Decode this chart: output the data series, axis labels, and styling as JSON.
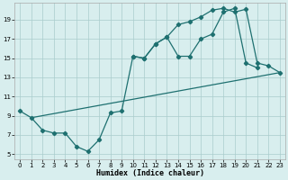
{
  "xlabel": "Humidex (Indice chaleur)",
  "background_color": "#d8eeee",
  "grid_color": "#aacccc",
  "line_color": "#1e7070",
  "xlim": [
    -0.5,
    23.5
  ],
  "ylim": [
    4.5,
    20.8
  ],
  "xticks": [
    0,
    1,
    2,
    3,
    4,
    5,
    6,
    7,
    8,
    9,
    10,
    11,
    12,
    13,
    14,
    15,
    16,
    17,
    18,
    19,
    20,
    21,
    22,
    23
  ],
  "yticks": [
    5,
    7,
    9,
    11,
    13,
    15,
    17,
    19
  ],
  "series1_x": [
    0,
    1,
    2,
    3,
    4,
    5,
    6,
    7,
    8,
    9,
    10,
    11,
    12,
    13,
    14,
    15,
    16,
    17,
    18,
    19,
    20,
    21
  ],
  "series1_y": [
    9.5,
    8.8,
    7.5,
    7.2,
    7.2,
    5.8,
    5.3,
    6.5,
    9.3,
    9.5,
    15.2,
    15.0,
    16.5,
    17.2,
    15.2,
    15.2,
    17.0,
    17.5,
    19.8,
    20.2,
    14.5,
    14.0
  ],
  "series2_x": [
    10,
    11,
    12,
    13,
    14,
    15,
    16,
    17,
    18,
    19,
    20,
    21,
    22,
    23
  ],
  "series2_y": [
    15.2,
    15.0,
    16.5,
    17.2,
    18.5,
    18.8,
    19.3,
    20.0,
    20.2,
    19.8,
    20.1,
    14.5,
    14.2,
    13.5
  ],
  "series3_x": [
    1,
    23
  ],
  "series3_y": [
    8.8,
    13.5
  ]
}
